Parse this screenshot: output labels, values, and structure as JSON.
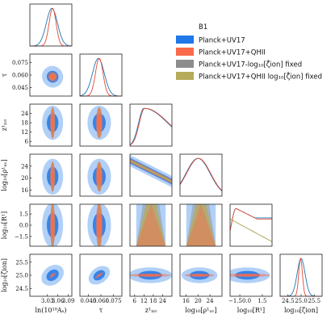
{
  "chart_data": {
    "type": "corner",
    "title": "B1",
    "colors": {
      "planck_uv17": "#1f77e8",
      "planck_uv17_qhii": "#fb6a4a",
      "fixed": "#8c8c8c",
      "qhii_fixed": "#b5ab5a",
      "line_blue": "#1f77b4",
      "line_red": "#e34a33",
      "line_olive": "#a8a04a"
    },
    "series": [
      {
        "key": "planck_uv17",
        "name": "Planck+UV17"
      },
      {
        "key": "planck_uv17_qhii",
        "name": "Planck+UV17+QHII"
      },
      {
        "key": "fixed",
        "name": "Planck+UV17-log₁₀[ζ̇ion] fixed"
      },
      {
        "key": "qhii_fixed",
        "name": "Planck+UV17+QHII log₁₀[ζ̇ion] fixed"
      }
    ],
    "parameters": [
      {
        "key": "lnAs",
        "xlabel": "ln(10¹⁰Aₛ)",
        "ylabel": "",
        "range": [
          2.98,
          3.1
        ],
        "xticks": [
          {
            "v": 3.03,
            "t": "3.03"
          },
          {
            "v": 3.06,
            "t": "3.06"
          },
          {
            "v": 3.09,
            "t": "3.09"
          }
        ],
        "yticks": []
      },
      {
        "key": "tau",
        "xlabel": "τ",
        "ylabel": "τ",
        "range": [
          0.035,
          0.085
        ],
        "xticks": [
          {
            "v": 0.045,
            "t": "0.045"
          },
          {
            "v": 0.06,
            "t": "0.060"
          },
          {
            "v": 0.075,
            "t": "0.075"
          }
        ],
        "yticks": [
          {
            "v": 0.045,
            "t": "0.045"
          },
          {
            "v": 0.06,
            "t": "0.060"
          },
          {
            "v": 0.075,
            "t": "0.075"
          }
        ]
      },
      {
        "key": "zint",
        "xlabel": "z¹ᵢₙₜ",
        "ylabel": "z¹ᵢₙₜ",
        "range": [
          3,
          30
        ],
        "xticks": [
          {
            "v": 6,
            "t": "6"
          },
          {
            "v": 12,
            "t": "12"
          },
          {
            "v": 18,
            "t": "18"
          },
          {
            "v": 24,
            "t": "24"
          }
        ],
        "yticks": [
          {
            "v": 6,
            "t": "6"
          },
          {
            "v": 12,
            "t": "12"
          },
          {
            "v": 18,
            "t": "18"
          },
          {
            "v": 24,
            "t": "24"
          }
        ]
      },
      {
        "key": "rhouv",
        "xlabel": "log₁₀[ρ¹ᵤᵥ]",
        "ylabel": "log₁₀[ρ¹ᵤᵥ]",
        "range": [
          14,
          28
        ],
        "xticks": [
          {
            "v": 16,
            "t": "16"
          },
          {
            "v": 20,
            "t": "20"
          },
          {
            "v": 24,
            "t": "24"
          }
        ],
        "yticks": [
          {
            "v": 16,
            "t": "16"
          },
          {
            "v": 20,
            "t": "20"
          },
          {
            "v": 24,
            "t": "24"
          }
        ]
      },
      {
        "key": "R",
        "xlabel": "log₁₀[R¹]",
        "ylabel": "log₁₀[R¹]",
        "range": [
          -2.8,
          2.8
        ],
        "xticks": [
          {
            "v": -1.5,
            "t": "−1.50.0"
          },
          {
            "v": 1.5,
            "t": "1.5"
          }
        ],
        "yticks": [
          {
            "v": -1.5,
            "t": "−1.5"
          },
          {
            "v": 0.0,
            "t": "0.0"
          },
          {
            "v": 1.5,
            "t": "1.5"
          }
        ]
      },
      {
        "key": "zeta",
        "xlabel": "log₁₀[ζ̇ion]",
        "ylabel": "log₁₀[ζ̇ion]",
        "range": [
          24.2,
          25.8
        ],
        "xticks": [
          {
            "v": 24.5,
            "t": "24.5"
          },
          {
            "v": 25.0,
            "t": "25.0"
          },
          {
            "v": 25.5,
            "t": "25.5"
          }
        ],
        "yticks": [
          {
            "v": 24.5,
            "t": "24.5"
          },
          {
            "v": 25.0,
            "t": "25.0"
          },
          {
            "v": 25.5,
            "t": "25.5"
          }
        ]
      }
    ],
    "marginals": [
      {
        "p": 0,
        "curves": [
          {
            "s": "planck_uv17",
            "m": 3.043,
            "sd": 0.016
          },
          {
            "s": "planck_uv17_qhii",
            "m": 3.045,
            "sd": 0.01
          }
        ]
      },
      {
        "p": 1,
        "curves": [
          {
            "s": "planck_uv17",
            "m": 0.057,
            "sd": 0.007
          },
          {
            "s": "planck_uv17_qhii",
            "m": 0.058,
            "sd": 0.0045
          }
        ]
      },
      {
        "p": 2,
        "curves": [
          {
            "s": "planck_uv17",
            "m": 12,
            "sd": 7,
            "flat_hi": true
          },
          {
            "s": "planck_uv17_qhii",
            "m": 12.5,
            "sd": 7,
            "flat_hi": true
          }
        ]
      },
      {
        "p": 3,
        "curves": [
          {
            "s": "planck_uv17",
            "m": 20,
            "sd": 4
          },
          {
            "s": "planck_uv17_qhii",
            "m": 20.2,
            "sd": 4
          }
        ]
      },
      {
        "p": 4,
        "curves": [
          {
            "s": "planck_uv17",
            "m": -2.0,
            "sd": 0.6,
            "plateau": 0.75
          },
          {
            "s": "planck_uv17_qhii",
            "m": -2.0,
            "sd": 0.6,
            "plateau": 0.72
          },
          {
            "s": "qhii_fixed",
            "m": -2.4,
            "sd": 3.0,
            "decline": true
          }
        ]
      },
      {
        "p": 5,
        "curves": [
          {
            "s": "planck_uv17",
            "m": 25.0,
            "sd": 0.15
          },
          {
            "s": "planck_uv17_qhii",
            "m": 24.98,
            "sd": 0.07
          }
        ]
      }
    ],
    "contours": [
      {
        "row": 1,
        "col": 0,
        "cx": 3.045,
        "cy": 0.058,
        "blue": [
          0.03,
          0.013
        ],
        "red": [
          0.013,
          0.006
        ],
        "gray": [
          0.01,
          0.004
        ],
        "olive": [
          0.011,
          0.004
        ],
        "angle": -30
      },
      {
        "row": 2,
        "col": 0,
        "cx": 3.045,
        "cy": 18,
        "blue": [
          0.03,
          11
        ],
        "red": [
          0.007,
          10
        ],
        "gray": [
          0.006,
          10
        ],
        "olive": [
          0.006,
          10
        ],
        "angle": 0
      },
      {
        "row": 2,
        "col": 1,
        "cx": 0.058,
        "cy": 18,
        "blue": [
          0.014,
          11
        ],
        "red": [
          0.004,
          10
        ],
        "gray": [
          0.003,
          10
        ],
        "olive": [
          0.003,
          10
        ],
        "angle": 0
      },
      {
        "row": 3,
        "col": 0,
        "cx": 3.045,
        "cy": 20.5,
        "blue": [
          0.03,
          6
        ],
        "red": [
          0.007,
          5
        ],
        "gray": [
          0.006,
          5
        ],
        "olive": [
          0.006,
          5
        ],
        "angle": 0
      },
      {
        "row": 3,
        "col": 1,
        "cx": 0.058,
        "cy": 20.5,
        "blue": [
          0.014,
          6
        ],
        "red": [
          0.004,
          5
        ],
        "gray": [
          0.003,
          5
        ],
        "olive": [
          0.003,
          5
        ],
        "angle": 0
      },
      {
        "row": 4,
        "col": 0,
        "cx": 3.045,
        "cy": 0,
        "blue": [
          0.03,
          3
        ],
        "red": [
          0.007,
          3
        ],
        "gray": [
          0.006,
          3
        ],
        "olive": [
          0.006,
          3
        ],
        "angle": 0
      },
      {
        "row": 4,
        "col": 1,
        "cx": 0.058,
        "cy": 0,
        "blue": [
          0.014,
          3
        ],
        "red": [
          0.004,
          3
        ],
        "gray": [
          0.003,
          3
        ],
        "olive": [
          0.003,
          3
        ],
        "angle": 0
      },
      {
        "row": 5,
        "col": 0,
        "cx": 3.045,
        "cy": 25.0,
        "blue": [
          0.035,
          0.35
        ],
        "red": [
          0.012,
          0.06
        ],
        "gray": [
          0,
          0
        ],
        "olive": [
          0,
          0
        ],
        "angle": -38
      },
      {
        "row": 5,
        "col": 1,
        "cx": 0.058,
        "cy": 25.0,
        "blue": [
          0.014,
          0.3
        ],
        "red": [
          0.006,
          0.05
        ],
        "gray": [
          0,
          0
        ],
        "olive": [
          0,
          0
        ],
        "angle": -35
      },
      {
        "row": 5,
        "col": 2,
        "cx": 16,
        "cy": 25.0,
        "blue": [
          14,
          0.3
        ],
        "red": [
          13,
          0.07
        ],
        "gray": [
          0,
          0
        ],
        "olive": [
          0,
          0
        ],
        "angle": 0
      },
      {
        "row": 5,
        "col": 3,
        "cx": 20.5,
        "cy": 25.0,
        "blue": [
          6,
          0.3
        ],
        "red": [
          5,
          0.07
        ],
        "gray": [
          0,
          0
        ],
        "olive": [
          0,
          0
        ],
        "angle": 0
      },
      {
        "row": 5,
        "col": 4,
        "cx": -0.5,
        "cy": 25.0,
        "blue": [
          3,
          0.3
        ],
        "red": [
          3,
          0.07
        ],
        "gray": [
          0,
          0
        ],
        "olive": [
          0,
          0
        ],
        "angle": 0
      }
    ],
    "degeneracies": [
      {
        "row": 3,
        "col": 2,
        "kind": "band_decreasing"
      },
      {
        "row": 4,
        "col": 2,
        "kind": "fan"
      },
      {
        "row": 4,
        "col": 3,
        "kind": "fan"
      }
    ]
  }
}
